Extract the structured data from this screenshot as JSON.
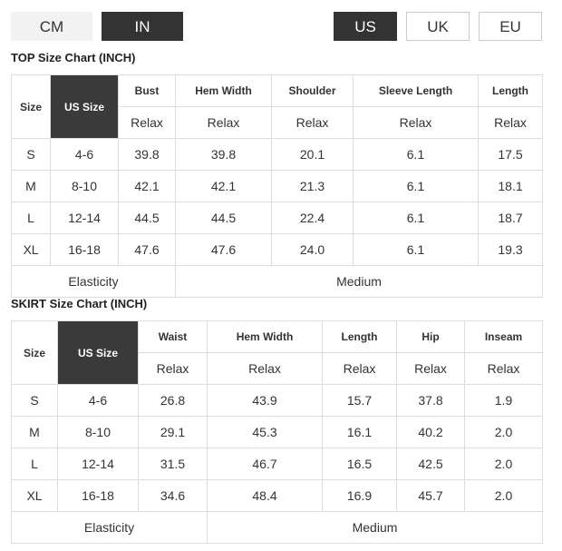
{
  "unit_toggle": [
    "CM",
    "IN"
  ],
  "selected_unit": "IN",
  "region_toggle": [
    "US",
    "UK",
    "EU"
  ],
  "selected_region": "US",
  "tables": [
    {
      "title": "TOP Size Chart (INCH)",
      "size_header": "Size",
      "us_size_header": "US Size",
      "columns": [
        "Bust",
        "Hem Width",
        "Shoulder",
        "Sleeve Length",
        "Length"
      ],
      "fit": [
        "Relax",
        "Relax",
        "Relax",
        "Relax",
        "Relax"
      ],
      "rows": [
        [
          "S",
          "4-6",
          "39.8",
          "39.8",
          "20.1",
          "6.1",
          "17.5"
        ],
        [
          "M",
          "8-10",
          "42.1",
          "42.1",
          "21.3",
          "6.1",
          "18.1"
        ],
        [
          "L",
          "12-14",
          "44.5",
          "44.5",
          "22.4",
          "6.1",
          "18.7"
        ],
        [
          "XL",
          "16-18",
          "47.6",
          "47.6",
          "24.0",
          "6.1",
          "19.3"
        ]
      ],
      "footer": [
        "Elasticity",
        "Medium"
      ]
    },
    {
      "title": "SKIRT Size Chart (INCH)",
      "size_header": "Size",
      "us_size_header": "US Size",
      "columns": [
        "Waist",
        "Hem Width",
        "Length",
        "Hip",
        "Inseam"
      ],
      "fit": [
        "Relax",
        "Relax",
        "Relax",
        "Relax",
        "Relax"
      ],
      "rows": [
        [
          "S",
          "4-6",
          "26.8",
          "43.9",
          "15.7",
          "37.8",
          "1.9"
        ],
        [
          "M",
          "8-10",
          "29.1",
          "45.3",
          "16.1",
          "40.2",
          "2.0"
        ],
        [
          "L",
          "12-14",
          "31.5",
          "46.7",
          "16.5",
          "42.5",
          "2.0"
        ],
        [
          "XL",
          "16-18",
          "34.6",
          "48.4",
          "16.9",
          "45.7",
          "2.0"
        ]
      ],
      "footer": [
        "Elasticity",
        "Medium"
      ]
    }
  ]
}
